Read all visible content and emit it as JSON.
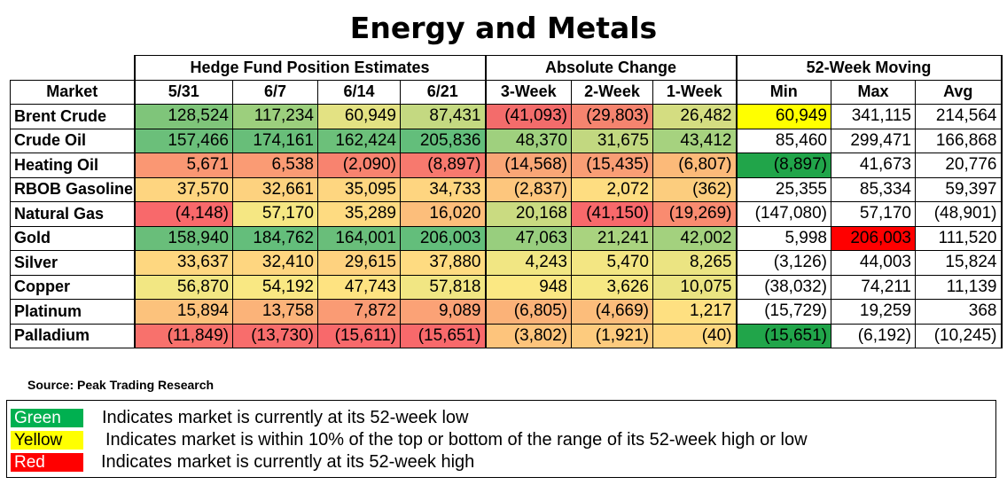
{
  "title": "Energy and Metals",
  "groups": {
    "hedge": "Hedge Fund Position Estimates",
    "absolute": "Absolute Change",
    "moving": "52-Week Moving"
  },
  "columns": [
    "Market",
    "5/31",
    "6/7",
    "6/14",
    "6/21",
    "3-Week",
    "2-Week",
    "1-Week",
    "Min",
    "Max",
    "Avg"
  ],
  "rows": [
    {
      "market": "Brent Crude",
      "cells": [
        {
          "v": "128,524",
          "bg": "#7fc57a"
        },
        {
          "v": "117,234",
          "bg": "#9ccf7d"
        },
        {
          "v": "60,949",
          "bg": "#e3e283"
        },
        {
          "v": "87,431",
          "bg": "#c4d981"
        },
        {
          "v": "(41,093)",
          "bg": "#f36c6b"
        },
        {
          "v": "(29,803)",
          "bg": "#f5846f"
        },
        {
          "v": "26,482",
          "bg": "#d4dd81"
        },
        {
          "v": "60,949",
          "bg": "#ffff00"
        },
        {
          "v": "341,115",
          "bg": "#ffffff"
        },
        {
          "v": "214,564",
          "bg": "#ffffff"
        }
      ]
    },
    {
      "market": "Crude Oil",
      "cells": [
        {
          "v": "157,466",
          "bg": "#6bbf7a"
        },
        {
          "v": "174,161",
          "bg": "#68be79"
        },
        {
          "v": "162,424",
          "bg": "#6cc07a"
        },
        {
          "v": "205,836",
          "bg": "#63be7b"
        },
        {
          "v": "48,370",
          "bg": "#9fd07e"
        },
        {
          "v": "31,675",
          "bg": "#c2d880"
        },
        {
          "v": "43,412",
          "bg": "#a6d27f"
        },
        {
          "v": "85,460",
          "bg": "#ffffff"
        },
        {
          "v": "299,471",
          "bg": "#ffffff"
        },
        {
          "v": "166,868",
          "bg": "#ffffff"
        }
      ]
    },
    {
      "market": "Heating Oil",
      "cells": [
        {
          "v": "5,671",
          "bg": "#fa9773"
        },
        {
          "v": "6,538",
          "bg": "#fa9b74"
        },
        {
          "v": "(2,090)",
          "bg": "#f8836f"
        },
        {
          "v": "(8,897)",
          "bg": "#f7796e"
        },
        {
          "v": "(14,568)",
          "bg": "#f9a676"
        },
        {
          "v": "(15,435)",
          "bg": "#f99e75"
        },
        {
          "v": "(6,807)",
          "bg": "#fcba79"
        },
        {
          "v": "(8,897)",
          "bg": "#21a54a"
        },
        {
          "v": "41,673",
          "bg": "#ffffff"
        },
        {
          "v": "20,776",
          "bg": "#ffffff"
        }
      ]
    },
    {
      "market": "RBOB Gasoline",
      "cells": [
        {
          "v": "37,570",
          "bg": "#fed580"
        },
        {
          "v": "32,661",
          "bg": "#fdd27f"
        },
        {
          "v": "35,095",
          "bg": "#fed680"
        },
        {
          "v": "34,733",
          "bg": "#fed580"
        },
        {
          "v": "(2,837)",
          "bg": "#fdc67d"
        },
        {
          "v": "2,072",
          "bg": "#fedd81"
        },
        {
          "v": "(362)",
          "bg": "#fccd7e"
        },
        {
          "v": "25,355",
          "bg": "#ffffff"
        },
        {
          "v": "85,334",
          "bg": "#ffffff"
        },
        {
          "v": "59,397",
          "bg": "#ffffff"
        }
      ]
    },
    {
      "market": "Natural Gas",
      "cells": [
        {
          "v": "(4,148)",
          "bg": "#f8696b"
        },
        {
          "v": "57,170",
          "bg": "#f5e783"
        },
        {
          "v": "35,289",
          "bg": "#fedb81"
        },
        {
          "v": "16,020",
          "bg": "#fcbe7b"
        },
        {
          "v": "20,168",
          "bg": "#cadb81"
        },
        {
          "v": "(41,150)",
          "bg": "#f8696b"
        },
        {
          "v": "(19,269)",
          "bg": "#f98b70"
        },
        {
          "v": "(147,080)",
          "bg": "#ffffff"
        },
        {
          "v": "57,170",
          "bg": "#ffffff"
        },
        {
          "v": "(48,901)",
          "bg": "#ffffff"
        }
      ]
    },
    {
      "market": "Gold",
      "cells": [
        {
          "v": "158,940",
          "bg": "#69be7a"
        },
        {
          "v": "184,762",
          "bg": "#64be7b"
        },
        {
          "v": "164,001",
          "bg": "#69be7a"
        },
        {
          "v": "206,003",
          "bg": "#63be7b"
        },
        {
          "v": "47,063",
          "bg": "#98ce7e"
        },
        {
          "v": "21,241",
          "bg": "#a9d37f"
        },
        {
          "v": "42,002",
          "bg": "#a3d17e"
        },
        {
          "v": "5,998",
          "bg": "#ffffff"
        },
        {
          "v": "206,003",
          "bg": "#ff0000"
        },
        {
          "v": "111,520",
          "bg": "#ffffff"
        }
      ]
    },
    {
      "market": "Silver",
      "cells": [
        {
          "v": "33,637",
          "bg": "#fed780"
        },
        {
          "v": "32,410",
          "bg": "#fed680"
        },
        {
          "v": "29,615",
          "bg": "#fed27f"
        },
        {
          "v": "37,880",
          "bg": "#fedb81"
        },
        {
          "v": "4,243",
          "bg": "#f1e683"
        },
        {
          "v": "5,470",
          "bg": "#f3e683"
        },
        {
          "v": "8,265",
          "bg": "#ebe482"
        },
        {
          "v": "(3,126)",
          "bg": "#ffffff"
        },
        {
          "v": "44,003",
          "bg": "#ffffff"
        },
        {
          "v": "15,824",
          "bg": "#ffffff"
        }
      ]
    },
    {
      "market": "Copper",
      "cells": [
        {
          "v": "56,870",
          "bg": "#f2e783"
        },
        {
          "v": "54,192",
          "bg": "#f9e883"
        },
        {
          "v": "47,743",
          "bg": "#fee381"
        },
        {
          "v": "57,818",
          "bg": "#f1e683"
        },
        {
          "v": "948",
          "bg": "#fbe883"
        },
        {
          "v": "3,626",
          "bg": "#f6e883"
        },
        {
          "v": "10,075",
          "bg": "#ebe482"
        },
        {
          "v": "(38,032)",
          "bg": "#ffffff"
        },
        {
          "v": "74,211",
          "bg": "#ffffff"
        },
        {
          "v": "11,139",
          "bg": "#ffffff"
        }
      ]
    },
    {
      "market": "Platinum",
      "cells": [
        {
          "v": "15,894",
          "bg": "#fcc27c"
        },
        {
          "v": "13,758",
          "bg": "#fbb379"
        },
        {
          "v": "7,872",
          "bg": "#fa9b74"
        },
        {
          "v": "9,089",
          "bg": "#fba276"
        },
        {
          "v": "(6,805)",
          "bg": "#fbb278"
        },
        {
          "v": "(4,669)",
          "bg": "#fcbd7b"
        },
        {
          "v": "1,217",
          "bg": "#fee081"
        },
        {
          "v": "(15,729)",
          "bg": "#ffffff"
        },
        {
          "v": "19,259",
          "bg": "#ffffff"
        },
        {
          "v": "368",
          "bg": "#ffffff"
        }
      ]
    },
    {
      "market": "Palladium",
      "cells": [
        {
          "v": "(11,849)",
          "bg": "#f8716c"
        },
        {
          "v": "(13,730)",
          "bg": "#f86d6c"
        },
        {
          "v": "(15,611)",
          "bg": "#f8696b"
        },
        {
          "v": "(15,651)",
          "bg": "#f8696b"
        },
        {
          "v": "(3,802)",
          "bg": "#fdc47c"
        },
        {
          "v": "(1,921)",
          "bg": "#fdcb7e"
        },
        {
          "v": "(40)",
          "bg": "#fed780"
        },
        {
          "v": "(15,651)",
          "bg": "#21a54a"
        },
        {
          "v": "(6,192)",
          "bg": "#ffffff"
        },
        {
          "v": "(10,245)",
          "bg": "#ffffff"
        }
      ]
    }
  ],
  "source": "Source: Peak Trading Research",
  "legend": [
    {
      "label": "Green",
      "color": "#00b050",
      "text_color": "#ffffff",
      "text": "Indicates market is currently at its 52-week low"
    },
    {
      "label": "Yellow",
      "color": "#ffff00",
      "text_color": "#000000",
      "text": "Indicates market is within 10% of the top or bottom of the range of its 52-week high or low"
    },
    {
      "label": "Red",
      "color": "#ff0000",
      "text_color": "#ffffff",
      "text": "Indicates market is currently at its 52-week high"
    }
  ]
}
